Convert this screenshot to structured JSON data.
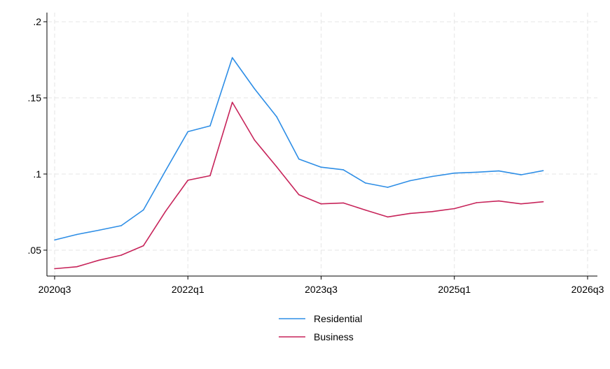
{
  "chart_data": {
    "type": "line",
    "title": "",
    "xlabel": "",
    "ylabel": "",
    "x": [
      "2020q3",
      "2020q4",
      "2021q1",
      "2021q2",
      "2021q3",
      "2021q4",
      "2022q1",
      "2022q2",
      "2022q3",
      "2022q4",
      "2023q1",
      "2023q2",
      "2023q3",
      "2023q4",
      "2024q1",
      "2024q2",
      "2024q3",
      "2024q4",
      "2025q1",
      "2025q2",
      "2025q3",
      "2025q4",
      "2026q1"
    ],
    "xlim": [
      "2020q3",
      "2026q3"
    ],
    "ylim": [
      0.033,
      0.206
    ],
    "x_ticks": [
      "2020q3",
      "2022q1",
      "2023q3",
      "2025q1",
      "2026q3"
    ],
    "y_ticks": [
      0.05,
      0.1,
      0.15,
      0.2
    ],
    "y_tick_labels": [
      ".05",
      ".1",
      ".15",
      ".2"
    ],
    "grid": true,
    "legend_position": "bottom",
    "series": [
      {
        "name": "Residential",
        "color": "#2e8ee6",
        "values": [
          0.0567,
          0.0603,
          0.0631,
          0.0661,
          0.0764,
          0.1023,
          0.1278,
          0.1316,
          0.1764,
          0.156,
          0.1376,
          0.1098,
          0.1045,
          0.1028,
          0.0941,
          0.0913,
          0.0956,
          0.0984,
          0.1006,
          0.1012,
          0.102,
          0.0995,
          0.1022
        ]
      },
      {
        "name": "Business",
        "color": "#c7245a",
        "values": [
          0.0378,
          0.0391,
          0.0434,
          0.0467,
          0.0529,
          0.0756,
          0.0959,
          0.0989,
          0.1471,
          0.1223,
          0.1047,
          0.0864,
          0.0804,
          0.081,
          0.0763,
          0.0718,
          0.0741,
          0.0753,
          0.0773,
          0.0812,
          0.0823,
          0.0804,
          0.0818
        ]
      }
    ]
  }
}
